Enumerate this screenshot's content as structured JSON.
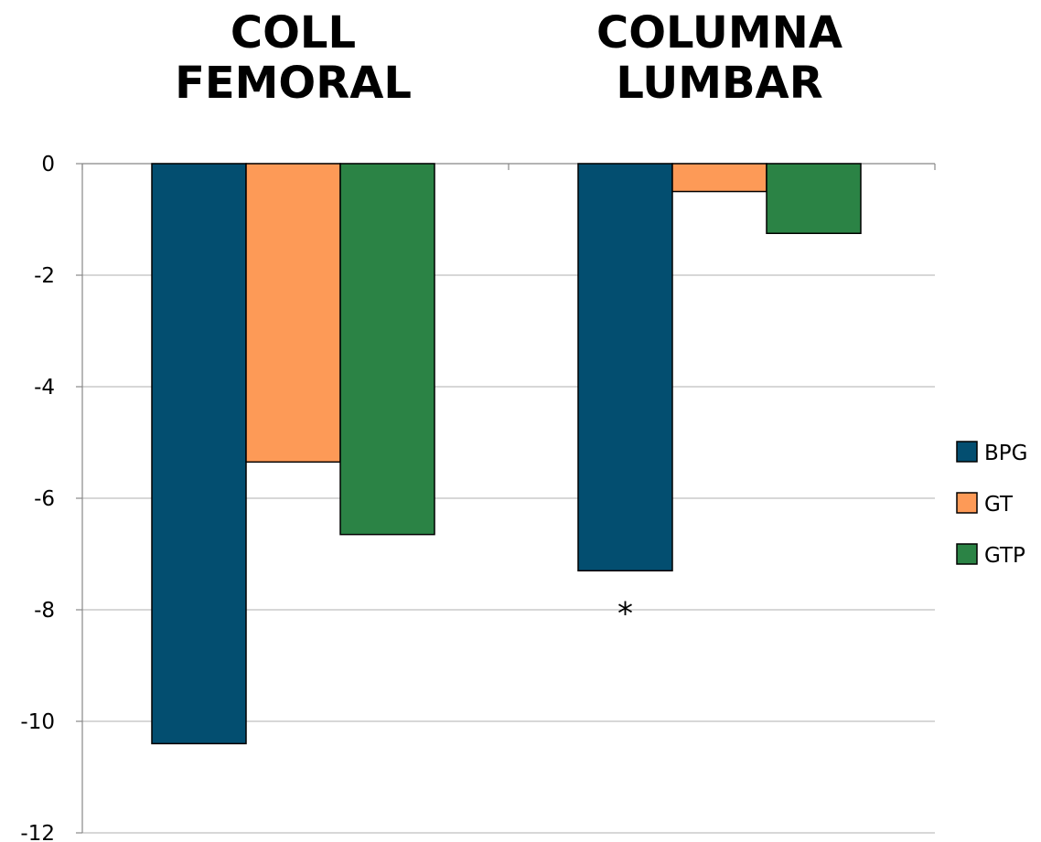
{
  "chart_data": {
    "type": "bar",
    "categories": [
      "COLL FEMORAL",
      "COLUMNA LUMBAR"
    ],
    "category_title_lines": [
      [
        "COLL",
        "FEMORAL"
      ],
      [
        "COLUMNA",
        "LUMBAR"
      ]
    ],
    "series": [
      {
        "name": "BPG",
        "values": [
          -10.4,
          -7.3
        ],
        "color": "#034e70"
      },
      {
        "name": "GT",
        "values": [
          -5.35,
          -0.5
        ],
        "color": "#fd9a57"
      },
      {
        "name": "GTP",
        "values": [
          -6.65,
          -1.25
        ],
        "color": "#2b8345"
      }
    ],
    "ylim": [
      -12,
      0
    ],
    "y_ticks": [
      0,
      -2,
      -4,
      -6,
      -8,
      -10,
      -12
    ],
    "y_tick_labels": [
      "0",
      "-2",
      "-4",
      "-6",
      "-8",
      "-10",
      "-12"
    ],
    "grid": true,
    "legend_position": "right",
    "annotations": [
      {
        "text": "*",
        "category_index": 1,
        "series_index": 0
      }
    ],
    "xlabel": "",
    "ylabel": ""
  }
}
